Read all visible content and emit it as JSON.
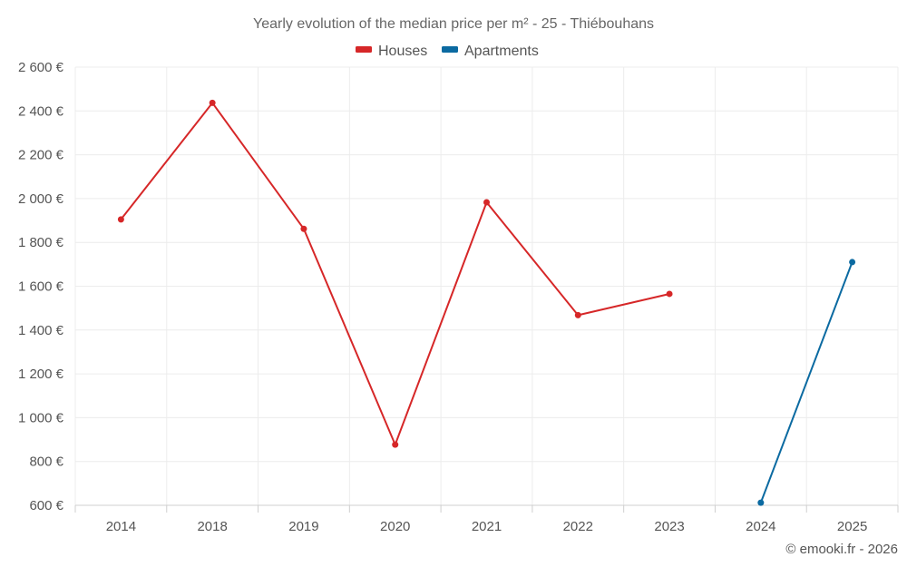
{
  "chart_data": {
    "type": "line",
    "title": "Yearly evolution of the median price per m² - 25 - Thiébouhans",
    "categories": [
      "2014",
      "2018",
      "2019",
      "2020",
      "2021",
      "2022",
      "2023",
      "2024",
      "2025"
    ],
    "series": [
      {
        "name": "Houses",
        "color": "#d62728",
        "values": [
          1905,
          2437,
          1862,
          877,
          1983,
          1468,
          1565,
          null,
          null
        ]
      },
      {
        "name": "Apartments",
        "color": "#0b6aa1",
        "values": [
          null,
          null,
          null,
          null,
          null,
          null,
          null,
          612,
          1710
        ]
      }
    ],
    "y_ticks": [
      "600 €",
      "800 €",
      "1 000 €",
      "1 200 €",
      "1 400 €",
      "1 600 €",
      "1 800 €",
      "2 000 €",
      "2 200 €",
      "2 400 €",
      "2 600 €"
    ],
    "ylim": [
      600,
      2600
    ],
    "grid": true,
    "legend_position": "top-center"
  },
  "credit": "© emooki.fr - 2026"
}
